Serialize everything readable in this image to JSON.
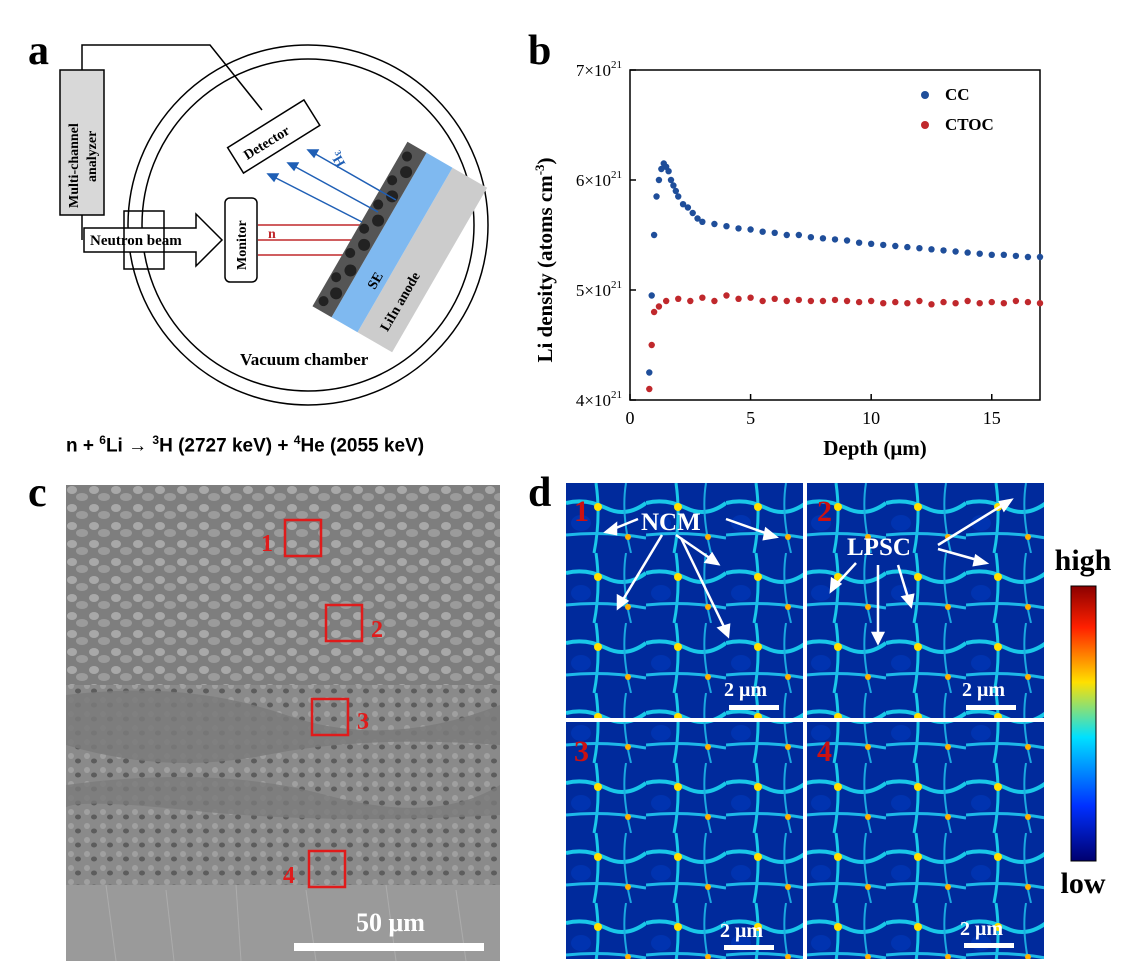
{
  "panels": {
    "a": {
      "letter": "a"
    },
    "b": {
      "letter": "b"
    },
    "c": {
      "letter": "c"
    },
    "d": {
      "letter": "d"
    }
  },
  "schematic": {
    "multichannel_line1": "Multi-channel",
    "multichannel_line2": "analyzer",
    "detector": "Detector",
    "neutron_beam": "Neutron beam",
    "monitor": "Monitor",
    "n_label": "n",
    "h3_sup": "3",
    "h3_base": "H",
    "se_label": "SE",
    "anode_label": "LiIn anode",
    "chamber_label": "Vacuum chamber"
  },
  "equation": {
    "n": "n + ",
    "li_sup": "6",
    "li": "Li → ",
    "h_sup": "3",
    "h": "H (2727 keV) + ",
    "he_sup": "4",
    "he": "He (2055 keV)"
  },
  "chart_data": {
    "type": "scatter",
    "xlabel": "Depth (μm)",
    "ylabel": "Li density (atoms cm⁻³)",
    "xlim": [
      0,
      17
    ],
    "ylim": [
      4e+21,
      7e+21
    ],
    "xticks": [
      0,
      5,
      10,
      15
    ],
    "ytick_labels": [
      {
        "value": 4e+21,
        "base": "4×10",
        "exp": "21"
      },
      {
        "value": 5e+21,
        "base": "5×10",
        "exp": "21"
      },
      {
        "value": 6e+21,
        "base": "6×10",
        "exp": "21"
      },
      {
        "value": 7e+21,
        "base": "7×10",
        "exp": "21"
      }
    ],
    "legend_position": "top-right",
    "series": [
      {
        "name": "CC",
        "color": "#1f4e9a",
        "x": [
          0.8,
          0.9,
          1.0,
          1.1,
          1.2,
          1.3,
          1.4,
          1.5,
          1.6,
          1.7,
          1.8,
          1.9,
          2.0,
          2.2,
          2.4,
          2.6,
          2.8,
          3.0,
          3.5,
          4.0,
          4.5,
          5.0,
          5.5,
          6.0,
          6.5,
          7.0,
          7.5,
          8.0,
          8.5,
          9.0,
          9.5,
          10.0,
          10.5,
          11.0,
          11.5,
          12.0,
          12.5,
          13.0,
          13.5,
          14.0,
          14.5,
          15.0,
          15.5,
          16.0,
          16.5,
          17.0
        ],
        "y": [
          4.25e+21,
          4.95e+21,
          5.5e+21,
          5.85e+21,
          6e+21,
          6.1e+21,
          6.15e+21,
          6.12e+21,
          6.08e+21,
          6e+21,
          5.95e+21,
          5.9e+21,
          5.85e+21,
          5.78e+21,
          5.75e+21,
          5.7e+21,
          5.65e+21,
          5.62e+21,
          5.6e+21,
          5.58e+21,
          5.56e+21,
          5.55e+21,
          5.53e+21,
          5.52e+21,
          5.5e+21,
          5.5e+21,
          5.48e+21,
          5.47e+21,
          5.46e+21,
          5.45e+21,
          5.43e+21,
          5.42e+21,
          5.41e+21,
          5.4e+21,
          5.39e+21,
          5.38e+21,
          5.37e+21,
          5.36e+21,
          5.35e+21,
          5.34e+21,
          5.33e+21,
          5.32e+21,
          5.32e+21,
          5.31e+21,
          5.3e+21,
          5.3e+21
        ]
      },
      {
        "name": "CTOC",
        "color": "#c0282c",
        "x": [
          0.8,
          0.9,
          1.0,
          1.2,
          1.5,
          2.0,
          2.5,
          3.0,
          3.5,
          4.0,
          4.5,
          5.0,
          5.5,
          6.0,
          6.5,
          7.0,
          7.5,
          8.0,
          8.5,
          9.0,
          9.5,
          10.0,
          10.5,
          11.0,
          11.5,
          12.0,
          12.5,
          13.0,
          13.5,
          14.0,
          14.5,
          15.0,
          15.5,
          16.0,
          16.5,
          17.0
        ],
        "y": [
          4.1e+21,
          4.5e+21,
          4.8e+21,
          4.85e+21,
          4.9e+21,
          4.92e+21,
          4.9e+21,
          4.93e+21,
          4.9e+21,
          4.95e+21,
          4.92e+21,
          4.93e+21,
          4.9e+21,
          4.92e+21,
          4.9e+21,
          4.91e+21,
          4.9e+21,
          4.9e+21,
          4.91e+21,
          4.9e+21,
          4.89e+21,
          4.9e+21,
          4.88e+21,
          4.89e+21,
          4.88e+21,
          4.9e+21,
          4.87e+21,
          4.89e+21,
          4.88e+21,
          4.9e+21,
          4.88e+21,
          4.89e+21,
          4.88e+21,
          4.9e+21,
          4.89e+21,
          4.88e+21
        ]
      }
    ]
  },
  "micrograph": {
    "scale": "50 μm",
    "regions": [
      "1",
      "2",
      "3",
      "4"
    ]
  },
  "maps": {
    "tiles": [
      {
        "num": "1",
        "scale": "2 μm"
      },
      {
        "num": "2",
        "scale": "2 μm"
      },
      {
        "num": "3",
        "scale": "2 μm"
      },
      {
        "num": "4",
        "scale": "2 μm"
      }
    ],
    "ncm": "NCM",
    "lpsc": "LPSC",
    "colorbar_high": "high",
    "colorbar_low": "low",
    "colors": {
      "low": "#00008f",
      "mid": "#00d4ff",
      "yellow": "#ffe000",
      "high": "#c00000"
    }
  }
}
